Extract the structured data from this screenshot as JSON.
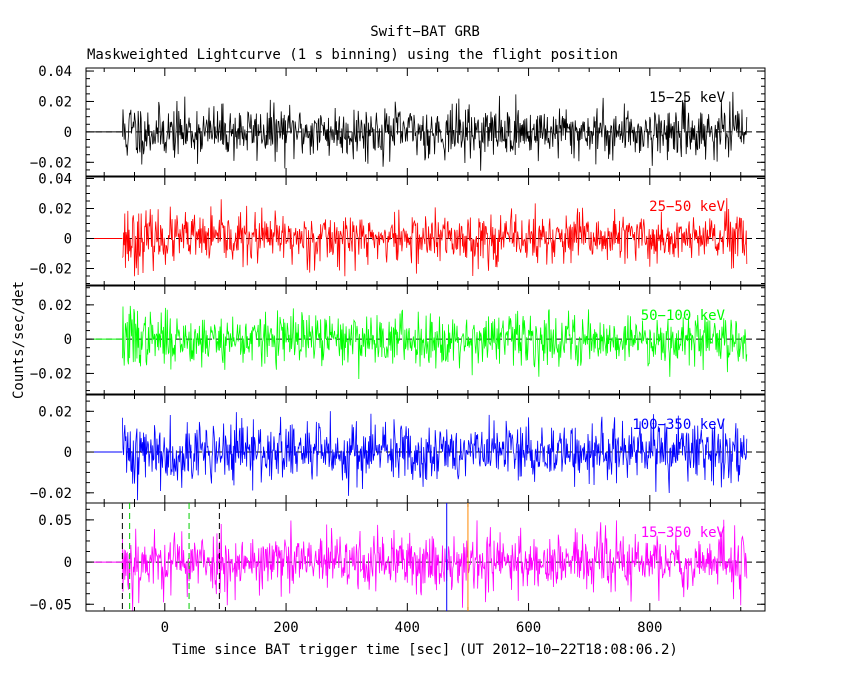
{
  "chart_data": {
    "type": "line",
    "title": "Swift−BAT GRB",
    "subtitle": "Maskweighted Lightcurve (1 s binning) using the flight position",
    "xlabel": "Time since BAT trigger time [sec] (UT 2012−10−22T18:08:06.2)",
    "ylabel": "Counts/sec/det",
    "xlim": [
      -130,
      990
    ],
    "data_xlim": [
      -70,
      960
    ],
    "pre_data_x": -120,
    "x_ticks": [
      0,
      200,
      400,
      600,
      800
    ],
    "x_tick_labels": [
      "0",
      "200",
      "400",
      "600",
      "800"
    ],
    "markers": [
      {
        "x": -70,
        "color": "#000000",
        "style": "dash",
        "panel": 4
      },
      {
        "x": -58,
        "color": "#00cc00",
        "style": "dash",
        "panel": 4
      },
      {
        "x": 40,
        "color": "#00cc00",
        "style": "dash",
        "panel": 4
      },
      {
        "x": 90,
        "color": "#000000",
        "style": "dash",
        "panel": 4
      },
      {
        "x": 465,
        "color": "#0000ff",
        "style": "solid",
        "panel": 4
      },
      {
        "x": 500,
        "color": "#ff8800",
        "style": "solid",
        "panel": 4
      }
    ],
    "series": [
      {
        "name": "15−25 keV",
        "label": "15−25 keV",
        "color": "#000000",
        "ylim": [
          -0.029,
          0.042
        ],
        "y_ticks": [
          -0.02,
          0,
          0.02,
          0.04
        ],
        "y_tick_labels": [
          "−0.02",
          "0",
          "0.02",
          "0.04"
        ],
        "noise_sigma": 0.0085,
        "seed": 11
      },
      {
        "name": "25−50 keV",
        "label": "25−50 keV",
        "color": "#ff0000",
        "ylim": [
          -0.031,
          0.041
        ],
        "y_ticks": [
          -0.02,
          0,
          0.02,
          0.04
        ],
        "y_tick_labels": [
          "−0.02",
          "0",
          "0.02",
          "0.04"
        ],
        "noise_sigma": 0.0085,
        "seed": 23
      },
      {
        "name": "50−100 keV",
        "label": "50−100 keV",
        "color": "#00ff00",
        "ylim": [
          -0.032,
          0.031
        ],
        "y_ticks": [
          -0.02,
          0,
          0.02
        ],
        "y_tick_labels": [
          "−0.02",
          "0",
          "0.02"
        ],
        "noise_sigma": 0.0075,
        "seed": 37
      },
      {
        "name": "100−350 keV",
        "label": "100−350 keV",
        "color": "#0000ff",
        "ylim": [
          -0.025,
          0.028
        ],
        "y_ticks": [
          -0.02,
          0,
          0.02
        ],
        "y_tick_labels": [
          "−0.02",
          "0",
          "0.02"
        ],
        "noise_sigma": 0.0075,
        "seed": 41
      },
      {
        "name": "15−350 keV",
        "label": "15−350 keV",
        "color": "#ff00ff",
        "ylim": [
          -0.058,
          0.07
        ],
        "y_ticks": [
          -0.05,
          0,
          0.05
        ],
        "y_tick_labels": [
          "−0.05",
          "0",
          "0.05"
        ],
        "noise_sigma": 0.018,
        "seed": 53
      }
    ]
  }
}
